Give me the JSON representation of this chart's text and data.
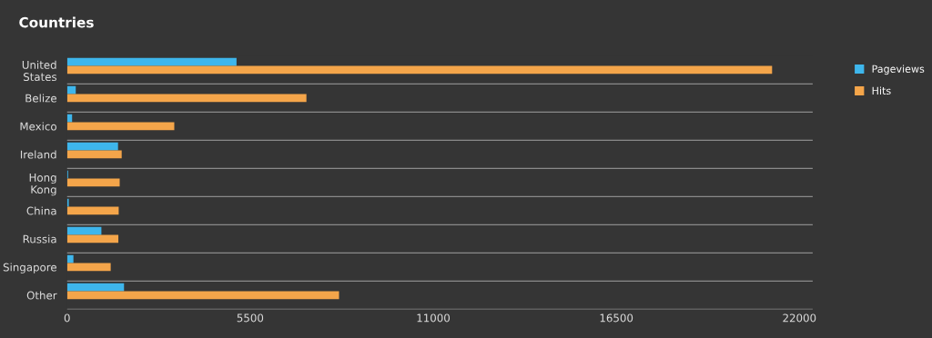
{
  "chart_data": {
    "type": "bar",
    "orientation": "horizontal",
    "title": "Countries",
    "categories": [
      "United States",
      "Belize",
      "Mexico",
      "Ireland",
      "Hong Kong",
      "China",
      "Russia",
      "Singapore",
      "Other"
    ],
    "series": [
      {
        "name": "Pageviews",
        "color": "#3eb6ec",
        "values": [
          5090,
          260,
          150,
          1530,
          30,
          50,
          1030,
          190,
          1710
        ]
      },
      {
        "name": "Hits",
        "color": "#f4a54a",
        "values": [
          21180,
          7190,
          3220,
          1640,
          1580,
          1550,
          1540,
          1310,
          8170
        ]
      }
    ],
    "xlim": [
      0,
      22400
    ],
    "xticks": [
      0,
      5500,
      11000,
      16500,
      22000
    ],
    "grid": "y",
    "legend": "top right"
  }
}
